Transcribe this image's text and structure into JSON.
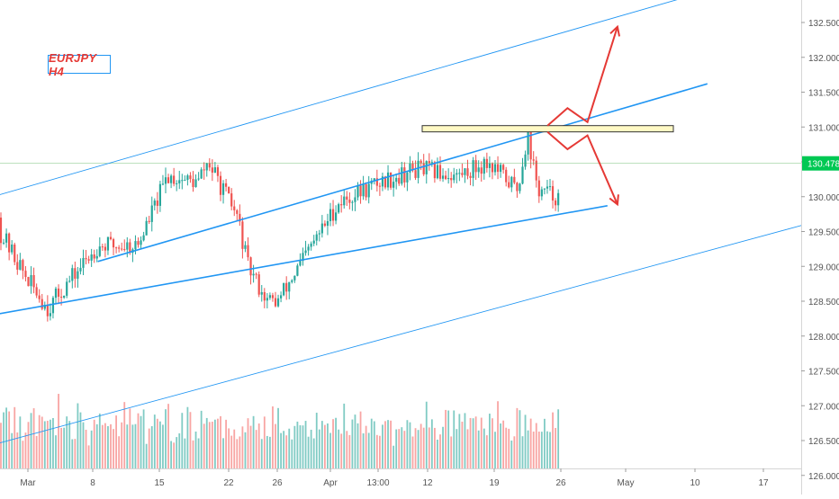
{
  "symbol_label": "EURJPY H4",
  "price_scale": {
    "ticks": [
      "132.500",
      "132.000",
      "131.500",
      "131.000",
      "130.500",
      "130.000",
      "129.500",
      "129.000",
      "128.500",
      "128.000",
      "127.500",
      "127.000",
      "126.500",
      "126.000"
    ],
    "current_price": "130.478"
  },
  "time_scale": {
    "ticks": [
      "Mar",
      "8",
      "15",
      "22",
      "26",
      "Apr",
      "13:00",
      "12",
      "19",
      "26",
      "May",
      "10",
      "17"
    ]
  },
  "colors": {
    "bull": "#26a69a",
    "bear": "#ef5350",
    "channel": "#2196f3",
    "arrow": "#e53935",
    "resistance_fill": "#fff9c4",
    "price_line": "#4caf50",
    "price_tag": "#00c853"
  },
  "chart_data": {
    "type": "candlestick",
    "title": "EURJPY H4",
    "xlabel": "",
    "ylabel": "",
    "ylim": [
      125.95,
      132.75
    ],
    "current_price": 130.478,
    "resistance_zone": [
      130.93,
      131.02
    ],
    "channels": [
      {
        "name": "outer-upper",
        "from": [
          "Feb 26",
          129.98
        ],
        "to": [
          "May 6",
          132.87
        ]
      },
      {
        "name": "inner-upper",
        "from": [
          "Mar 8",
          129.07
        ],
        "to": [
          "May 8",
          131.62
        ]
      },
      {
        "name": "inner-lower",
        "from": [
          "Feb 22",
          128.19
        ],
        "to": [
          "Apr 28",
          129.87
        ]
      },
      {
        "name": "outer-lower",
        "from": [
          "Feb 26",
          126.42
        ],
        "to": [
          "May 18",
          129.61
        ]
      }
    ],
    "scenarios": [
      {
        "name": "breakout-up",
        "path": [
          [
            "Apr 22",
            131.02
          ],
          [
            "Apr 24",
            131.27
          ],
          [
            "Apr 26",
            131.07
          ],
          [
            "Apr 29",
            132.44
          ]
        ]
      },
      {
        "name": "breakdown",
        "path": [
          [
            "Apr 22",
            130.93
          ],
          [
            "Apr 24",
            130.68
          ],
          [
            "Apr 26",
            130.88
          ],
          [
            "Apr 29",
            129.89
          ]
        ]
      }
    ],
    "price_path": {
      "x": [
        "Feb 26",
        "Mar 1",
        "Mar 3",
        "Mar 8",
        "Mar 12",
        "Mar 15",
        "Mar 18",
        "Mar 19",
        "Mar 22",
        "Mar 23",
        "Mar 25",
        "Mar 26",
        "Mar 29",
        "Apr 1",
        "Apr 5",
        "Apr 9",
        "Apr 13",
        "Apr 16",
        "Apr 19",
        "Apr 20",
        "Apr 21",
        "Apr 23",
        "Apr 24",
        "Apr 26"
      ],
      "close": [
        129.8,
        128.8,
        128.4,
        129.3,
        129.3,
        130.3,
        130.2,
        130.5,
        129.7,
        129.0,
        128.5,
        128.5,
        129.2,
        129.9,
        130.2,
        130.4,
        130.3,
        130.5,
        130.1,
        130.9,
        130.1,
        130.0,
        129.8,
        130.48
      ]
    },
    "volume": {
      "note": "relative bar heights, first shown bar to last",
      "values": [
        0.3,
        0.4,
        0.6,
        0.5,
        0.3,
        0.7,
        0.4,
        0.5,
        0.3,
        0.6,
        0.4,
        0.8,
        0.5,
        0.3,
        0.6,
        0.4,
        0.5,
        0.3,
        0.4,
        0.6,
        0.5,
        0.9,
        0.4,
        0.3,
        0.5,
        0.6,
        0.4,
        0.3,
        0.7,
        0.5,
        0.4,
        0.6,
        0.3,
        0.5,
        0.4,
        0.8,
        0.6,
        0.3,
        0.5,
        0.4
      ]
    }
  }
}
